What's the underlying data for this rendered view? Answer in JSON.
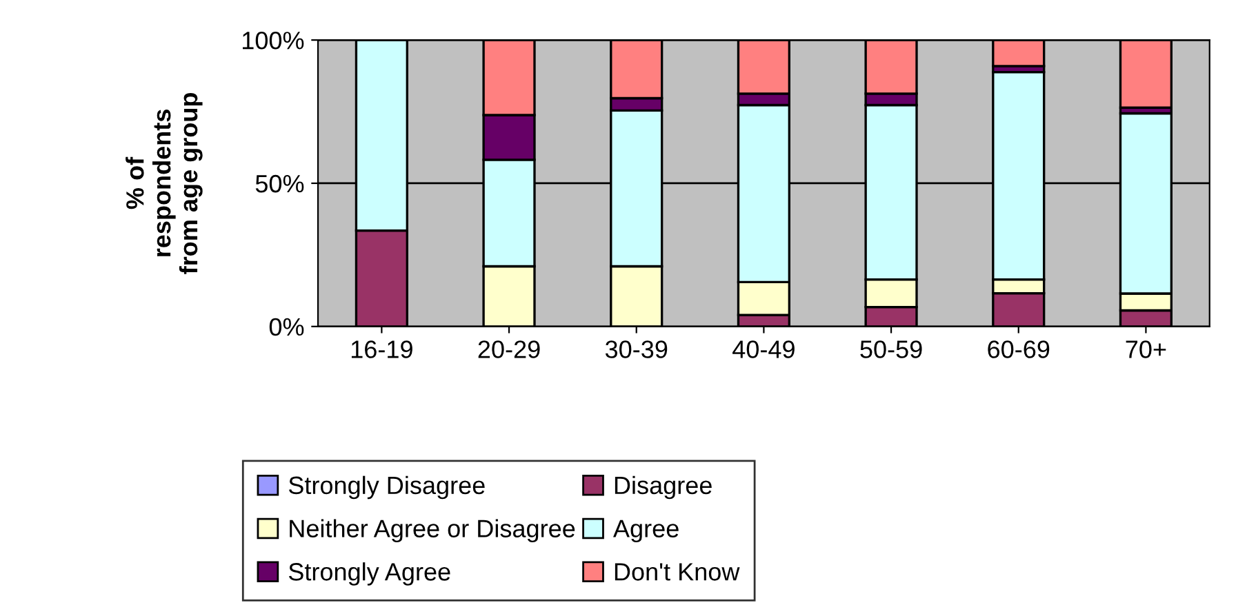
{
  "chart_data": {
    "type": "bar",
    "stacked": true,
    "ylabel": "% of\nrespondents\nfrom age group",
    "categories": [
      "16-19",
      "20-29",
      "30-39",
      "40-49",
      "50-59",
      "60-69",
      "70+"
    ],
    "series": [
      {
        "name": "Strongly Disagree",
        "color": "#9999ff",
        "values": [
          0,
          0,
          0,
          0,
          0,
          0,
          0
        ]
      },
      {
        "name": "Disagree",
        "color": "#993366",
        "values": [
          33.5,
          0,
          0,
          4,
          6.8,
          11.6,
          5.6
        ]
      },
      {
        "name": "Neither Agree or Disagree",
        "color": "#ffffcc",
        "values": [
          0,
          21,
          21,
          11.5,
          9.6,
          4.8,
          5.9
        ]
      },
      {
        "name": "Agree",
        "color": "#ccffff",
        "values": [
          66.5,
          37.2,
          54.4,
          61.8,
          60.9,
          72.4,
          62.9
        ]
      },
      {
        "name": "Strongly Agree",
        "color": "#660066",
        "values": [
          0,
          15.6,
          4.3,
          4,
          4,
          2.1,
          2
        ]
      },
      {
        "name": "Don't Know",
        "color": "#ff8080",
        "values": [
          0,
          26.2,
          20.3,
          18.7,
          18.7,
          9.1,
          23.6
        ]
      }
    ],
    "ylim": [
      0,
      100
    ],
    "yticks": [
      {
        "value": 0,
        "label": "0%"
      },
      {
        "value": 50,
        "label": "50%"
      },
      {
        "value": 100,
        "label": "100%"
      }
    ],
    "grid": "y",
    "legend": "bottom"
  }
}
